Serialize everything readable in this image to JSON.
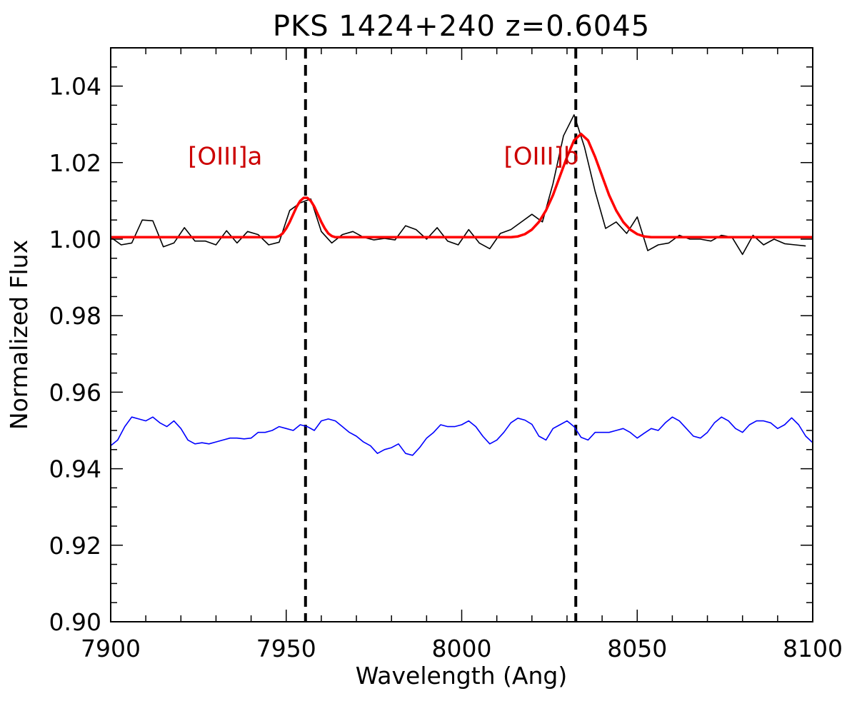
{
  "chart_data": {
    "type": "line",
    "title": "PKS 1424+240 z=0.6045",
    "xlabel": "Wavelength (Ang)",
    "ylabel": "Normalized Flux",
    "xlim": [
      7900,
      8100
    ],
    "ylim": [
      0.9,
      1.05
    ],
    "x_ticks": [
      7900,
      7950,
      8000,
      8050,
      8100
    ],
    "x_tick_labels": [
      "7900",
      "7950",
      "8000",
      "8050",
      "8100"
    ],
    "y_ticks": [
      0.9,
      0.92,
      0.94,
      0.96,
      0.98,
      1.0,
      1.02,
      1.04
    ],
    "y_tick_labels": [
      "0.90",
      "0.92",
      "0.94",
      "0.96",
      "0.98",
      "1.00",
      "1.02",
      "1.04"
    ],
    "x_minor_step": 10,
    "y_minor_step": 0.005,
    "grid": false,
    "colors": {
      "observed": "#000000",
      "model": "#ff0000",
      "comparison": "#0000ff",
      "annotation": "#cc0000",
      "marker": "#000000"
    },
    "series": [
      {
        "key": "observed",
        "x": [
          7900,
          7903,
          7906,
          7909,
          7912,
          7915,
          7918,
          7921,
          7924,
          7927,
          7930,
          7933,
          7936,
          7939,
          7942,
          7945,
          7948,
          7951,
          7954,
          7957,
          7960,
          7963,
          7966,
          7969,
          7972,
          7975,
          7978,
          7981,
          7984,
          7987,
          7990,
          7993,
          7996,
          7999,
          8002,
          8005,
          8008,
          8011,
          8014,
          8017,
          8020,
          8023,
          8026,
          8029,
          8032,
          8035,
          8038,
          8041,
          8044,
          8047,
          8050,
          8053,
          8056,
          8059,
          8062,
          8065,
          8068,
          8071,
          8074,
          8077,
          8080,
          8083,
          8086,
          8089,
          8092,
          8095,
          8098
        ],
        "values": [
          1.0005,
          0.9985,
          0.999,
          1.005,
          1.0048,
          0.998,
          0.999,
          1.003,
          0.9995,
          0.9995,
          0.9985,
          1.0022,
          0.999,
          1.002,
          1.0012,
          0.9985,
          0.9992,
          1.0075,
          1.0095,
          1.0105,
          1.002,
          0.999,
          1.0012,
          1.002,
          1.0005,
          0.9998,
          1.0002,
          0.9998,
          1.0035,
          1.0025,
          1.0,
          1.003,
          0.9995,
          0.9985,
          1.0025,
          0.999,
          0.9975,
          1.0015,
          1.0025,
          1.0045,
          1.0065,
          1.0045,
          1.0145,
          1.027,
          1.0325,
          1.024,
          1.0125,
          1.0028,
          1.0045,
          1.0015,
          1.0058,
          0.997,
          0.9985,
          0.999,
          1.001,
          1.0,
          1.0,
          0.9995,
          1.001,
          1.0005,
          0.996,
          1.001,
          0.9985,
          1.0,
          0.9988,
          0.9985,
          0.9982
        ]
      },
      {
        "key": "model",
        "x": [
          7900,
          7947,
          7948,
          7949,
          7950,
          7951,
          7952,
          7953,
          7954,
          7955,
          7956,
          7957,
          7958,
          7959,
          7960,
          7961,
          7962,
          7963,
          7964,
          7965,
          8014,
          8016,
          8018,
          8020,
          8022,
          8024,
          8026,
          8028,
          8030,
          8032,
          8034,
          8036,
          8038,
          8040,
          8042,
          8044,
          8046,
          8048,
          8050,
          8052,
          8054,
          8100
        ],
        "values": [
          1.0005,
          1.0005,
          1.0008,
          1.0015,
          1.0028,
          1.0045,
          1.0065,
          1.0085,
          1.01,
          1.0108,
          1.0108,
          1.01,
          1.0085,
          1.0065,
          1.0045,
          1.0028,
          1.0015,
          1.0008,
          1.0005,
          1.0005,
          1.0005,
          1.0007,
          1.0013,
          1.0025,
          1.0045,
          1.0075,
          1.0115,
          1.0165,
          1.0215,
          1.0258,
          1.0275,
          1.0258,
          1.0215,
          1.0165,
          1.0115,
          1.0075,
          1.0045,
          1.0025,
          1.0013,
          1.0007,
          1.0005,
          1.0005
        ]
      },
      {
        "key": "comparison",
        "x": [
          7900,
          7902,
          7904,
          7906,
          7908,
          7910,
          7912,
          7914,
          7916,
          7918,
          7920,
          7922,
          7924,
          7926,
          7928,
          7930,
          7932,
          7934,
          7936,
          7938,
          7940,
          7942,
          7944,
          7946,
          7948,
          7950,
          7952,
          7954,
          7956,
          7958,
          7960,
          7962,
          7964,
          7966,
          7968,
          7970,
          7972,
          7974,
          7976,
          7978,
          7980,
          7982,
          7984,
          7986,
          7988,
          7990,
          7992,
          7994,
          7996,
          7998,
          8000,
          8002,
          8004,
          8006,
          8008,
          8010,
          8012,
          8014,
          8016,
          8018,
          8020,
          8022,
          8024,
          8026,
          8028,
          8030,
          8032,
          8034,
          8036,
          8038,
          8040,
          8042,
          8044,
          8046,
          8048,
          8050,
          8052,
          8054,
          8056,
          8058,
          8060,
          8062,
          8064,
          8066,
          8068,
          8070,
          8072,
          8074,
          8076,
          8078,
          8080,
          8082,
          8084,
          8086,
          8088,
          8090,
          8092,
          8094,
          8096,
          8098,
          8100
        ],
        "values": [
          0.946,
          0.9475,
          0.951,
          0.9535,
          0.953,
          0.9525,
          0.9535,
          0.952,
          0.951,
          0.9525,
          0.9505,
          0.9475,
          0.9465,
          0.9468,
          0.9465,
          0.947,
          0.9475,
          0.948,
          0.948,
          0.9478,
          0.948,
          0.9495,
          0.9495,
          0.95,
          0.951,
          0.9505,
          0.95,
          0.9515,
          0.951,
          0.95,
          0.9525,
          0.953,
          0.9525,
          0.951,
          0.9495,
          0.9485,
          0.947,
          0.946,
          0.944,
          0.945,
          0.9455,
          0.9465,
          0.944,
          0.9435,
          0.9455,
          0.948,
          0.9495,
          0.9515,
          0.951,
          0.951,
          0.9515,
          0.9525,
          0.951,
          0.9485,
          0.9465,
          0.9475,
          0.9495,
          0.952,
          0.9532,
          0.9527,
          0.9516,
          0.9485,
          0.9475,
          0.9505,
          0.9515,
          0.9525,
          0.951,
          0.9482,
          0.9475,
          0.9495,
          0.9495,
          0.9495,
          0.95,
          0.9505,
          0.9495,
          0.948,
          0.9493,
          0.9505,
          0.95,
          0.952,
          0.9535,
          0.9525,
          0.9505,
          0.9485,
          0.948,
          0.9495,
          0.952,
          0.9535,
          0.9525,
          0.9505,
          0.9495,
          0.9515,
          0.9525,
          0.9525,
          0.952,
          0.9505,
          0.9515,
          0.9533,
          0.9515,
          0.9485,
          0.9468
        ]
      }
    ],
    "vlines": [
      {
        "x": 7955.5,
        "style": "dashed"
      },
      {
        "x": 8032.5,
        "style": "dashed"
      }
    ],
    "annotations": [
      {
        "text": "[OIII]a",
        "x": 7922,
        "y": 1.0195
      },
      {
        "text": "[OIII]b",
        "x": 8012,
        "y": 1.0195
      }
    ]
  }
}
